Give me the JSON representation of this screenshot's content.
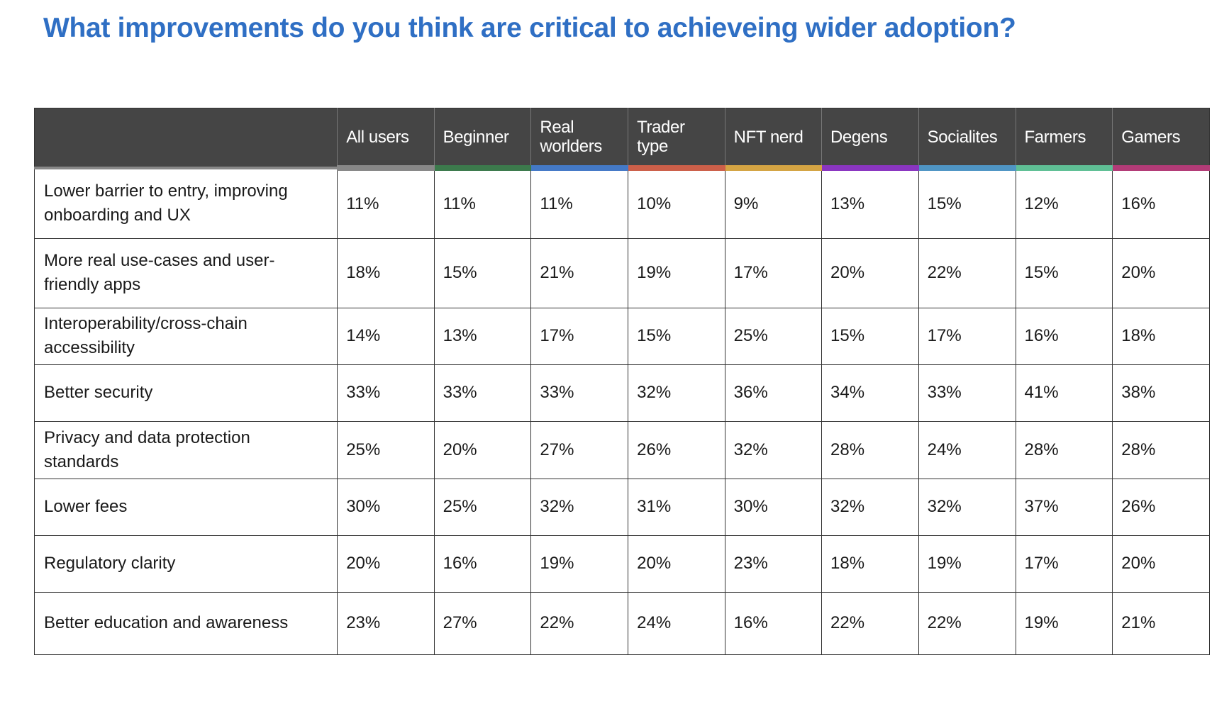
{
  "title": "What improvements do you think are critical to achieveing wider adoption?",
  "columns": [
    {
      "label": "All users",
      "color": "#888888"
    },
    {
      "label": "Beginner",
      "color": "#3c7a4c"
    },
    {
      "label": "Real worlders",
      "color": "#4479c6"
    },
    {
      "label": "Trader type",
      "color": "#cc5f49"
    },
    {
      "label": "NFT nerd",
      "color": "#d4a443"
    },
    {
      "label": "Degens",
      "color": "#8a35c0"
    },
    {
      "label": "Socialites",
      "color": "#4f95c4"
    },
    {
      "label": "Farmers",
      "color": "#5fbf95"
    },
    {
      "label": "Gamers",
      "color": "#b23b77"
    }
  ],
  "rows": [
    {
      "label": "Lower barrier to entry, improving onboarding and UX",
      "values": [
        "11%",
        "11%",
        "11%",
        "10%",
        "9%",
        "13%",
        "15%",
        "12%",
        "16%"
      ]
    },
    {
      "label": "More real use-cases and user-friendly apps",
      "values": [
        "18%",
        "15%",
        "21%",
        "19%",
        "17%",
        "20%",
        "22%",
        "15%",
        "20%"
      ]
    },
    {
      "label": "Interoperability/cross-chain accessibility",
      "values": [
        "14%",
        "13%",
        "17%",
        "15%",
        "25%",
        "15%",
        "17%",
        "16%",
        "18%"
      ]
    },
    {
      "label": "Better security",
      "values": [
        "33%",
        "33%",
        "33%",
        "32%",
        "36%",
        "34%",
        "33%",
        "41%",
        "38%"
      ]
    },
    {
      "label": "Privacy and data protection standards",
      "values": [
        "25%",
        "20%",
        "27%",
        "26%",
        "32%",
        "28%",
        "24%",
        "28%",
        "28%"
      ]
    },
    {
      "label": "Lower fees",
      "values": [
        "30%",
        "25%",
        "32%",
        "31%",
        "30%",
        "32%",
        "32%",
        "37%",
        "26%"
      ]
    },
    {
      "label": "Regulatory clarity",
      "values": [
        "20%",
        "16%",
        "19%",
        "20%",
        "23%",
        "18%",
        "19%",
        "17%",
        "20%"
      ]
    },
    {
      "label": "Better education and awareness",
      "values": [
        "23%",
        "27%",
        "22%",
        "24%",
        "16%",
        "22%",
        "22%",
        "19%",
        "21%"
      ]
    }
  ]
}
